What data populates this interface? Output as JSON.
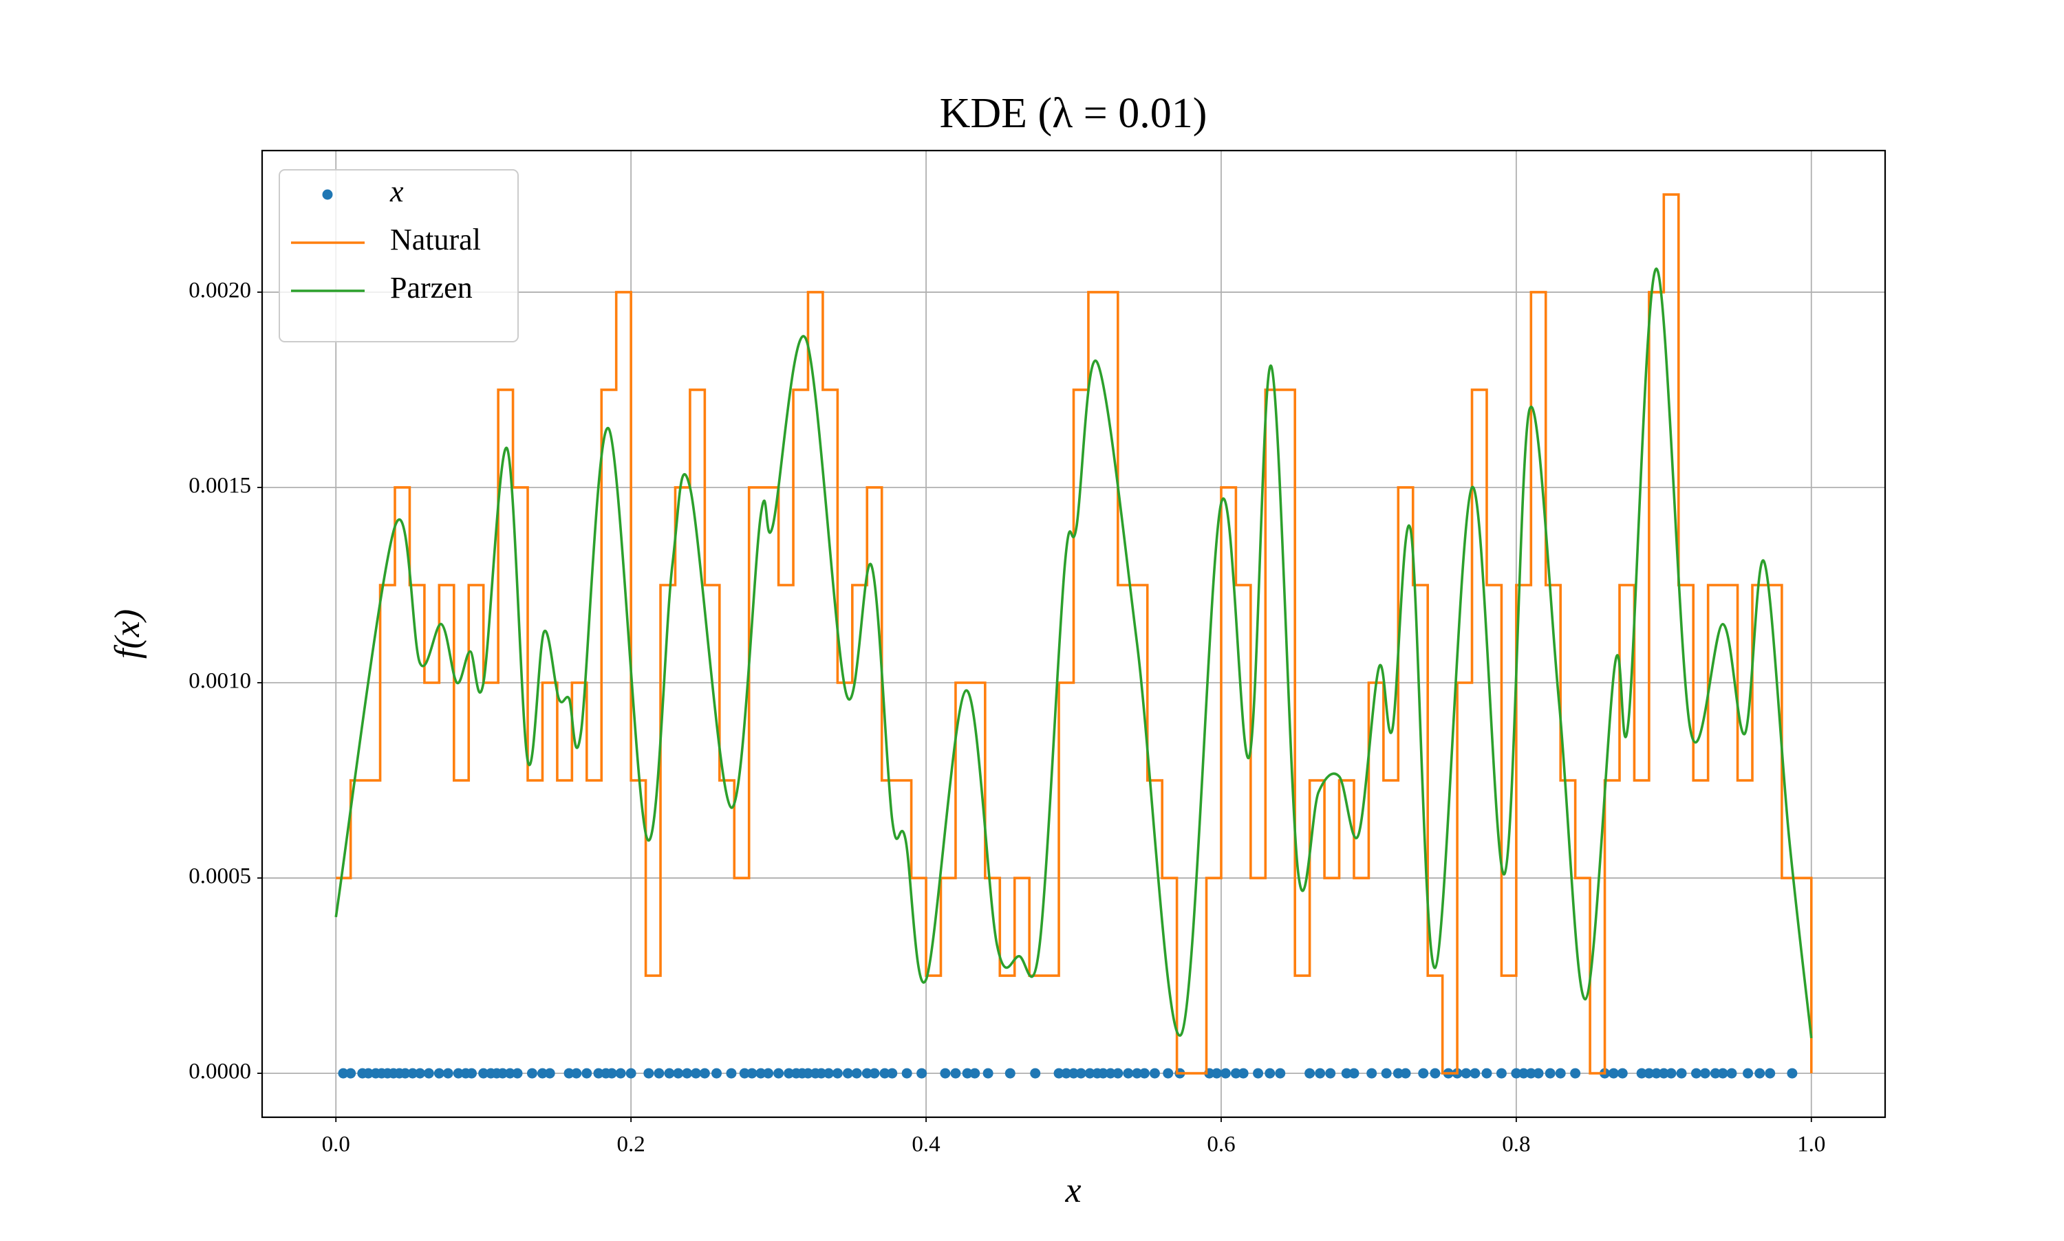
{
  "chart_data": {
    "type": "line",
    "title": "KDE (λ = 0.01)",
    "x_label": "x",
    "y_label": "f(x)",
    "xlim": [
      -0.05,
      1.05
    ],
    "ylim": [
      -0.0001125,
      0.0023625
    ],
    "xticks": [
      {
        "value": 0,
        "label": "0.0"
      },
      0.2,
      0.4,
      0.6,
      0.8,
      {
        "value": 1,
        "label": "1.0"
      }
    ],
    "yticks": [
      {
        "value": 0,
        "label": "0.0000"
      },
      {
        "value": 0.0005,
        "label": "0.0005"
      },
      {
        "value": 0.001,
        "label": "0.0010"
      },
      {
        "value": 0.0015,
        "label": "0.0015"
      },
      {
        "value": 0.002,
        "label": "0.0020"
      }
    ],
    "grid": true,
    "legend": "upper left",
    "series": [
      {
        "name": "x",
        "type": "scatter",
        "color": "#1f77b4",
        "x": [
          0.005,
          0.01,
          0.018,
          0.022,
          0.027,
          0.031,
          0.035,
          0.039,
          0.043,
          0.047,
          0.052,
          0.057,
          0.063,
          0.07,
          0.076,
          0.083,
          0.088,
          0.092,
          0.1,
          0.105,
          0.109,
          0.113,
          0.118,
          0.123,
          0.133,
          0.14,
          0.145,
          0.158,
          0.163,
          0.17,
          0.178,
          0.183,
          0.187,
          0.193,
          0.2,
          0.212,
          0.219,
          0.226,
          0.232,
          0.238,
          0.244,
          0.25,
          0.258,
          0.268,
          0.277,
          0.282,
          0.288,
          0.293,
          0.3,
          0.307,
          0.312,
          0.316,
          0.32,
          0.325,
          0.329,
          0.334,
          0.34,
          0.347,
          0.353,
          0.36,
          0.365,
          0.372,
          0.377,
          0.387,
          0.397,
          0.413,
          0.42,
          0.428,
          0.433,
          0.442,
          0.457,
          0.474,
          0.49,
          0.495,
          0.5,
          0.505,
          0.511,
          0.516,
          0.52,
          0.525,
          0.53,
          0.537,
          0.543,
          0.548,
          0.555,
          0.564,
          0.572,
          0.592,
          0.597,
          0.603,
          0.61,
          0.615,
          0.625,
          0.633,
          0.64,
          0.66,
          0.667,
          0.674,
          0.685,
          0.69,
          0.702,
          0.712,
          0.72,
          0.725,
          0.737,
          0.745,
          0.754,
          0.76,
          0.766,
          0.772,
          0.78,
          0.79,
          0.8,
          0.805,
          0.81,
          0.815,
          0.823,
          0.83,
          0.84,
          0.86,
          0.866,
          0.872,
          0.885,
          0.89,
          0.895,
          0.9,
          0.905,
          0.912,
          0.922,
          0.928,
          0.935,
          0.94,
          0.946,
          0.957,
          0.965,
          0.972,
          0.987
        ],
        "values": [
          0,
          0,
          0,
          0,
          0,
          0,
          0,
          0,
          0,
          0,
          0,
          0,
          0,
          0,
          0,
          0,
          0,
          0,
          0,
          0,
          0,
          0,
          0,
          0,
          0,
          0,
          0,
          0,
          0,
          0,
          0,
          0,
          0,
          0,
          0,
          0,
          0,
          0,
          0,
          0,
          0,
          0,
          0,
          0,
          0,
          0,
          0,
          0,
          0,
          0,
          0,
          0,
          0,
          0,
          0,
          0,
          0,
          0,
          0,
          0,
          0,
          0,
          0,
          0,
          0,
          0,
          0,
          0,
          0,
          0,
          0,
          0,
          0,
          0,
          0,
          0,
          0,
          0,
          0,
          0,
          0,
          0,
          0,
          0,
          0,
          0,
          0,
          0,
          0,
          0,
          0,
          0,
          0,
          0,
          0,
          0,
          0,
          0,
          0,
          0,
          0,
          0,
          0,
          0,
          0,
          0,
          0,
          0,
          0,
          0,
          0,
          0,
          0,
          0,
          0,
          0,
          0,
          0,
          0,
          0,
          0,
          0,
          0,
          0,
          0,
          0,
          0,
          0,
          0,
          0,
          0,
          0,
          0,
          0,
          0,
          0,
          0
        ]
      },
      {
        "name": "Natural",
        "type": "step",
        "color": "#ff7f0e",
        "x": [
          0,
          0.01,
          0.02,
          0.03,
          0.04,
          0.05,
          0.06,
          0.07,
          0.08,
          0.09,
          0.1,
          0.11,
          0.12,
          0.13,
          0.14,
          0.15,
          0.16,
          0.17,
          0.18,
          0.19,
          0.2,
          0.21,
          0.22,
          0.23,
          0.24,
          0.25,
          0.26,
          0.27,
          0.28,
          0.29,
          0.3,
          0.31,
          0.32,
          0.33,
          0.34,
          0.35,
          0.36,
          0.37,
          0.38,
          0.39,
          0.4,
          0.41,
          0.42,
          0.43,
          0.44,
          0.45,
          0.46,
          0.47,
          0.48,
          0.49,
          0.5,
          0.51,
          0.52,
          0.53,
          0.54,
          0.55,
          0.56,
          0.57,
          0.58,
          0.59,
          0.6,
          0.61,
          0.62,
          0.63,
          0.64,
          0.65,
          0.66,
          0.67,
          0.68,
          0.69,
          0.7,
          0.71,
          0.72,
          0.73,
          0.74,
          0.75,
          0.76,
          0.77,
          0.78,
          0.79,
          0.8,
          0.81,
          0.82,
          0.83,
          0.84,
          0.85,
          0.86,
          0.87,
          0.88,
          0.89,
          0.9,
          0.91,
          0.92,
          0.93,
          0.94,
          0.95,
          0.96,
          0.97,
          0.98,
          0.99,
          1
        ],
        "values": [
          0.0005,
          0.00075,
          0.00075,
          0.00125,
          0.0015,
          0.00125,
          0.001,
          0.00125,
          0.00075,
          0.00125,
          0.001,
          0.00175,
          0.0015,
          0.00075,
          0.001,
          0.00075,
          0.001,
          0.00075,
          0.00175,
          0.002,
          0.00075,
          0.00025,
          0.00125,
          0.0015,
          0.00175,
          0.00125,
          0.00075,
          0.0005,
          0.0015,
          0.0015,
          0.00125,
          0.00175,
          0.002,
          0.00175,
          0.001,
          0.00125,
          0.0015,
          0.00075,
          0.00075,
          0.0005,
          0.00025,
          0.0005,
          0.001,
          0.001,
          0.0005,
          0.00025,
          0.0005,
          0.00025,
          0.00025,
          0.001,
          0.00175,
          0.002,
          0.002,
          0.00125,
          0.00125,
          0.00075,
          0.0005,
          0,
          0,
          0.0005,
          0.0015,
          0.00125,
          0.0005,
          0.00175,
          0.00175,
          0.00025,
          0.00075,
          0.0005,
          0.00075,
          0.0005,
          0.001,
          0.00075,
          0.0015,
          0.00125,
          0.00025,
          0,
          0.001,
          0.00175,
          0.00125,
          0.00025,
          0.00125,
          0.002,
          0.00125,
          0.00075,
          0.0005,
          0,
          0.00075,
          0.00125,
          0.00075,
          0.002,
          0.00225,
          0.00125,
          0.00075,
          0.00125,
          0.00125,
          0.00075,
          0.00125,
          0.00125,
          0.0005,
          0.0005,
          0
        ]
      },
      {
        "name": "Parzen",
        "type": "line",
        "color": "#2ca02c",
        "x": [
          0,
          0.04,
          0.057,
          0.0715,
          0.082,
          0.091,
          0.1,
          0.116,
          0.13,
          0.141,
          0.151,
          0.158,
          0.166,
          0.185,
          0.211,
          0.228,
          0.24,
          0.268,
          0.288,
          0.296,
          0.3186,
          0.346,
          0.363,
          0.377,
          0.386,
          0.4,
          0.427,
          0.448,
          0.463,
          0.477,
          0.494,
          0.502,
          0.516,
          0.543,
          0.573,
          0.6,
          0.619,
          0.634,
          0.652,
          0.666,
          0.68,
          0.693,
          0.707,
          0.716,
          0.7285,
          0.745,
          0.77,
          0.792,
          0.809,
          0.829,
          0.847,
          0.867,
          0.876,
          0.895,
          0.918,
          0.94,
          0.955,
          0.968,
          0.985,
          1
        ],
        "values": [
          0.0004,
          0.0014,
          0.00105,
          0.00115,
          0.001,
          0.00108,
          0.001,
          0.0016,
          0.0008,
          0.00113,
          0.00096,
          0.00096,
          0.00087,
          0.00165,
          0.0006,
          0.0013,
          0.0015,
          0.00068,
          0.00143,
          0.0014,
          0.00188,
          0.00097,
          0.0013,
          0.00065,
          0.0006,
          0.00024,
          0.00098,
          0.00033,
          0.0003,
          0.00033,
          0.0013,
          0.0014,
          0.00182,
          0.0011,
          0.0001,
          0.00146,
          0.00081,
          0.00181,
          0.00052,
          0.00072,
          0.00076,
          0.00061,
          0.00104,
          0.00088,
          0.00139,
          0.00027,
          0.0015,
          0.00051,
          0.0017,
          0.00095,
          0.00019,
          0.00105,
          0.0009,
          0.00206,
          0.00088,
          0.00115,
          0.00087,
          0.00131,
          0.0006,
          9e-05
        ]
      }
    ]
  }
}
